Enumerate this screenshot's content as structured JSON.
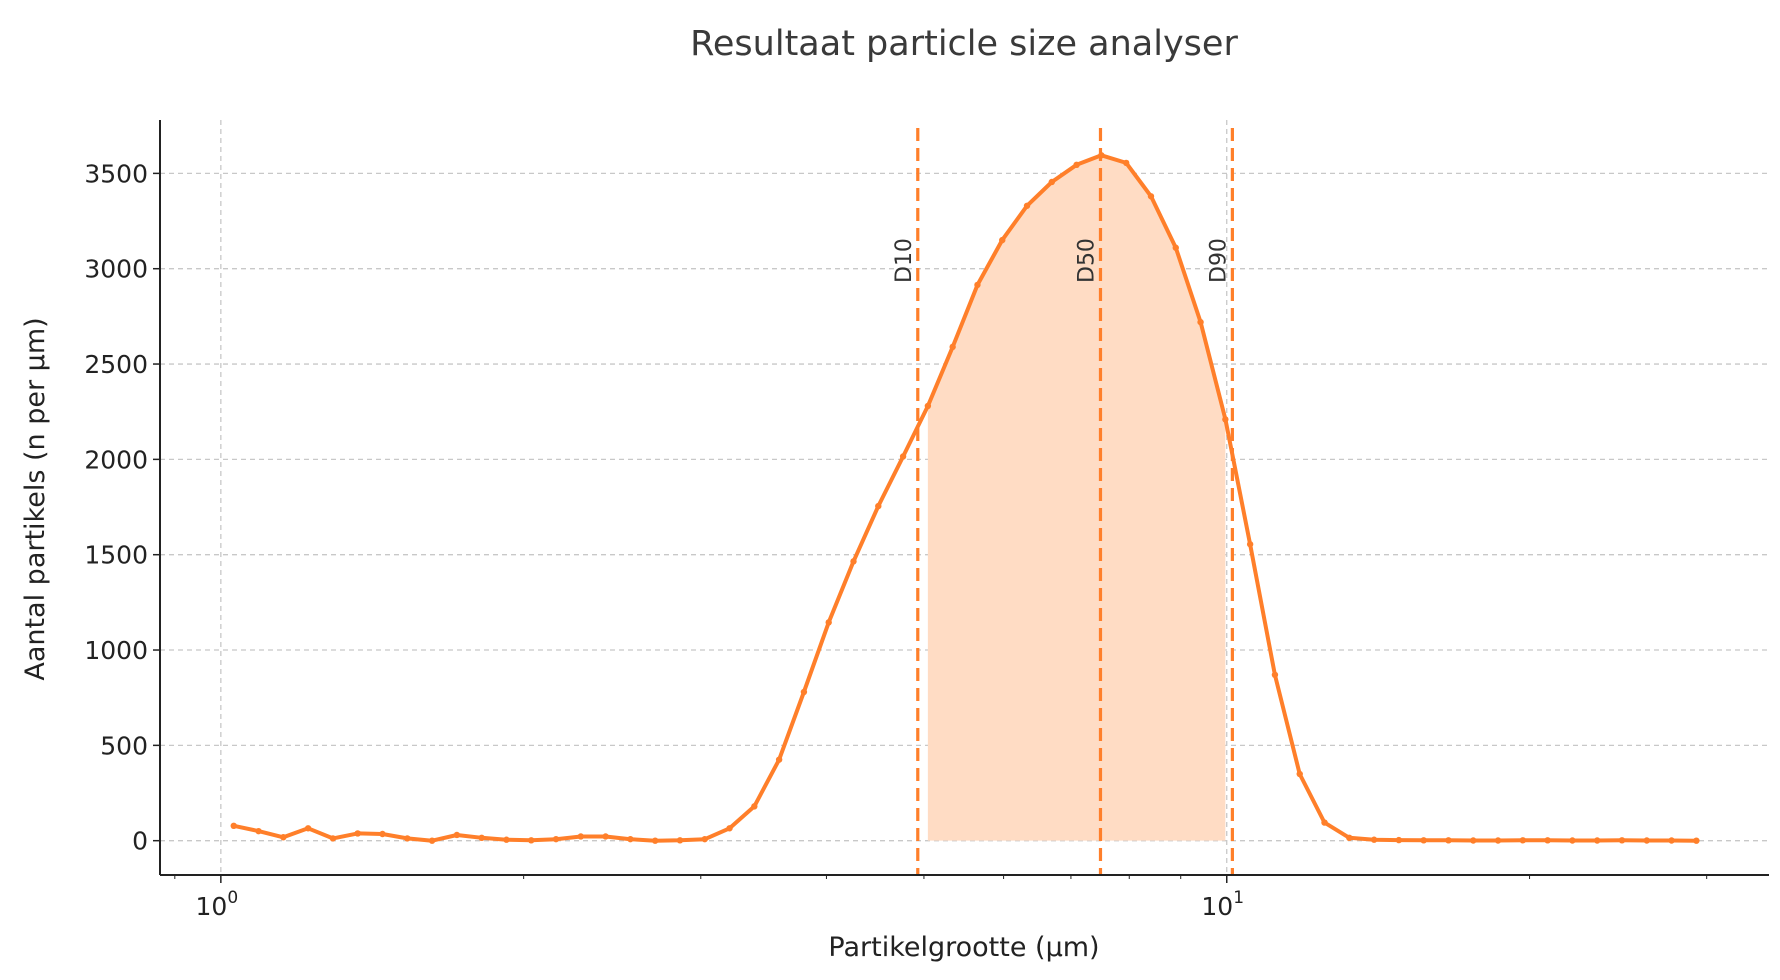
{
  "chart_data": {
    "type": "line",
    "title": "Resultaat particle size analyser",
    "xlabel": "Partikelgrootte (µm)",
    "ylabel": "Aantal partikels (n per µm)",
    "xscale": "log",
    "xlim": [
      0.87,
      34.6
    ],
    "ylim": [
      -180,
      3780
    ],
    "grid": true,
    "color": "#ff7f2a",
    "fill_color": "#ffdcc4",
    "x_range": [
      1.03,
      29.3
    ],
    "n_points": 60,
    "values": [
      78,
      50,
      18,
      65,
      12,
      38,
      35,
      12,
      0,
      30,
      15,
      5,
      2,
      8,
      22,
      22,
      8,
      0,
      2,
      8,
      65,
      180,
      425,
      780,
      1145,
      1465,
      1755,
      2015,
      2280,
      2590,
      2915,
      3150,
      3330,
      3455,
      3545,
      3595,
      3555,
      3380,
      3110,
      2720,
      2210,
      1555,
      870,
      350,
      95,
      15,
      5,
      3,
      2,
      2,
      1,
      1,
      2,
      2,
      1,
      1,
      2,
      1,
      1,
      0
    ],
    "yticks": [
      0,
      500,
      1000,
      1500,
      2000,
      2500,
      3000,
      3500
    ],
    "xticks": [
      {
        "value": 1,
        "base": "10",
        "exp": "0"
      },
      {
        "value": 10,
        "base": "10",
        "exp": "1"
      }
    ],
    "x_minor_ticks": [
      0.9,
      2,
      3,
      4,
      5,
      6,
      7,
      8,
      9,
      20,
      30
    ],
    "shaded_range": [
      5.0,
      10.0
    ],
    "markers": [
      {
        "label": "D10",
        "value": 4.93
      },
      {
        "label": "D50",
        "value": 7.49
      },
      {
        "label": "D90",
        "value": 10.13
      }
    ]
  }
}
